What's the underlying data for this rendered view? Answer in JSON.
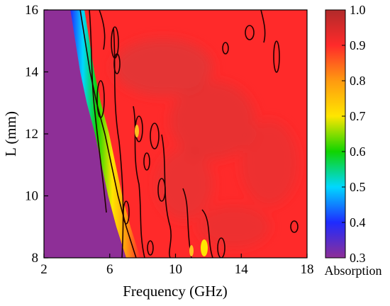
{
  "chart_data": {
    "type": "heatmap",
    "title": "",
    "xlabel": "Frequency (GHz)",
    "ylabel": "L (mm)",
    "xlim": [
      2,
      18
    ],
    "ylim": [
      8,
      16
    ],
    "x_ticks": [
      "2",
      "6",
      "10",
      "14",
      "18"
    ],
    "y_ticks": [
      "8",
      "10",
      "12",
      "14",
      "16"
    ],
    "colorbar": {
      "title": "Absorption",
      "range": [
        0.3,
        1.0
      ],
      "ticks": [
        "0.3",
        "0.4",
        "0.5",
        "0.6",
        "0.7",
        "0.8",
        "0.9",
        "1.0"
      ],
      "colors": [
        "#8e2f97",
        "#1e2bff",
        "#00d8ff",
        "#10d400",
        "#ffe600",
        "#ff9a10",
        "#ff2a2a",
        "#b12a2a"
      ]
    },
    "boundary": {
      "description": "absorption rises from 0.3 to ~0.85 across this frequency edge",
      "L": [
        8,
        9,
        10,
        11,
        12,
        13,
        14,
        15,
        16
      ],
      "f_edge": [
        7.0,
        6.4,
        5.9,
        5.5,
        5.1,
        4.6,
        4.2,
        3.9,
        3.6
      ]
    },
    "values_summary": {
      "left_region": 0.3,
      "main_region": 0.85,
      "dark_region": 0.92
    },
    "grid": false,
    "legend": "colorbar-right"
  }
}
